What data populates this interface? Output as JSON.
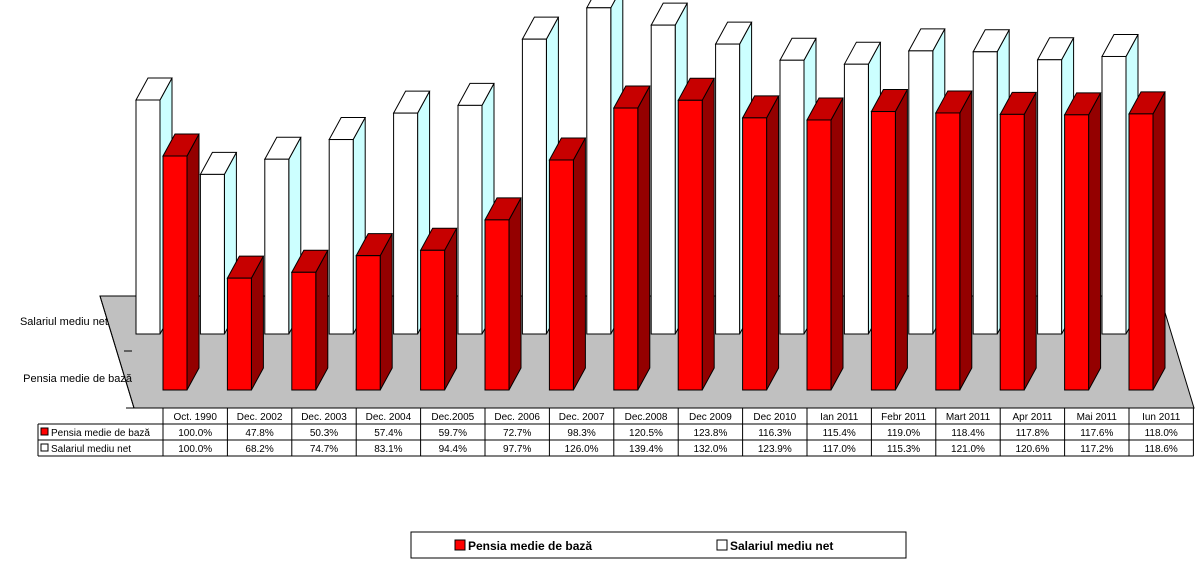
{
  "chart_data": {
    "type": "bar",
    "subtype": "3d-clustered-column-with-data-table",
    "categories": [
      "Oct. 1990",
      "Dec. 2002",
      "Dec. 2003",
      "Dec. 2004",
      "Dec.2005",
      "Dec. 2006",
      "Dec. 2007",
      "Dec.2008",
      "Dec 2009",
      "Dec 2010",
      "Ian 2011",
      "Febr 2011",
      "Mart 2011",
      "Apr 2011",
      "Mai 2011",
      "Iun 2011"
    ],
    "series": [
      {
        "name": "Pensia medie de bază",
        "color": "#ff0000",
        "values": [
          100.0,
          47.8,
          50.3,
          57.4,
          59.7,
          72.7,
          98.3,
          120.5,
          123.8,
          116.3,
          115.4,
          119.0,
          118.4,
          117.8,
          117.6,
          118.0
        ],
        "labels": [
          "100.0%",
          "47.8%",
          "50.3%",
          "57.4%",
          "59.7%",
          "72.7%",
          "98.3%",
          "120.5%",
          "123.8%",
          "116.3%",
          "115.4%",
          "119.0%",
          "118.4%",
          "117.8%",
          "117.6%",
          "118.0%"
        ]
      },
      {
        "name": "Salariul mediu net",
        "color": "#ffffff",
        "values": [
          100.0,
          68.2,
          74.7,
          83.1,
          94.4,
          97.7,
          126.0,
          139.4,
          132.0,
          123.9,
          117.0,
          115.3,
          121.0,
          120.6,
          117.2,
          118.6
        ],
        "labels": [
          "100.0%",
          "68.2%",
          "74.7%",
          "83.1%",
          "94.4%",
          "97.7%",
          "126.0%",
          "139.4%",
          "132.0%",
          "123.9%",
          "117.0%",
          "115.3%",
          "121.0%",
          "120.6%",
          "117.2%",
          "118.6%"
        ]
      }
    ],
    "depth_axis_labels": [
      "Salariul mediu net",
      "Pensia medie de bază"
    ],
    "legend": {
      "position": "bottom",
      "entries": [
        "Pensia medie de bază",
        "Salariul mediu net"
      ]
    },
    "floor_color": "#c0c0c0",
    "grid": false
  }
}
